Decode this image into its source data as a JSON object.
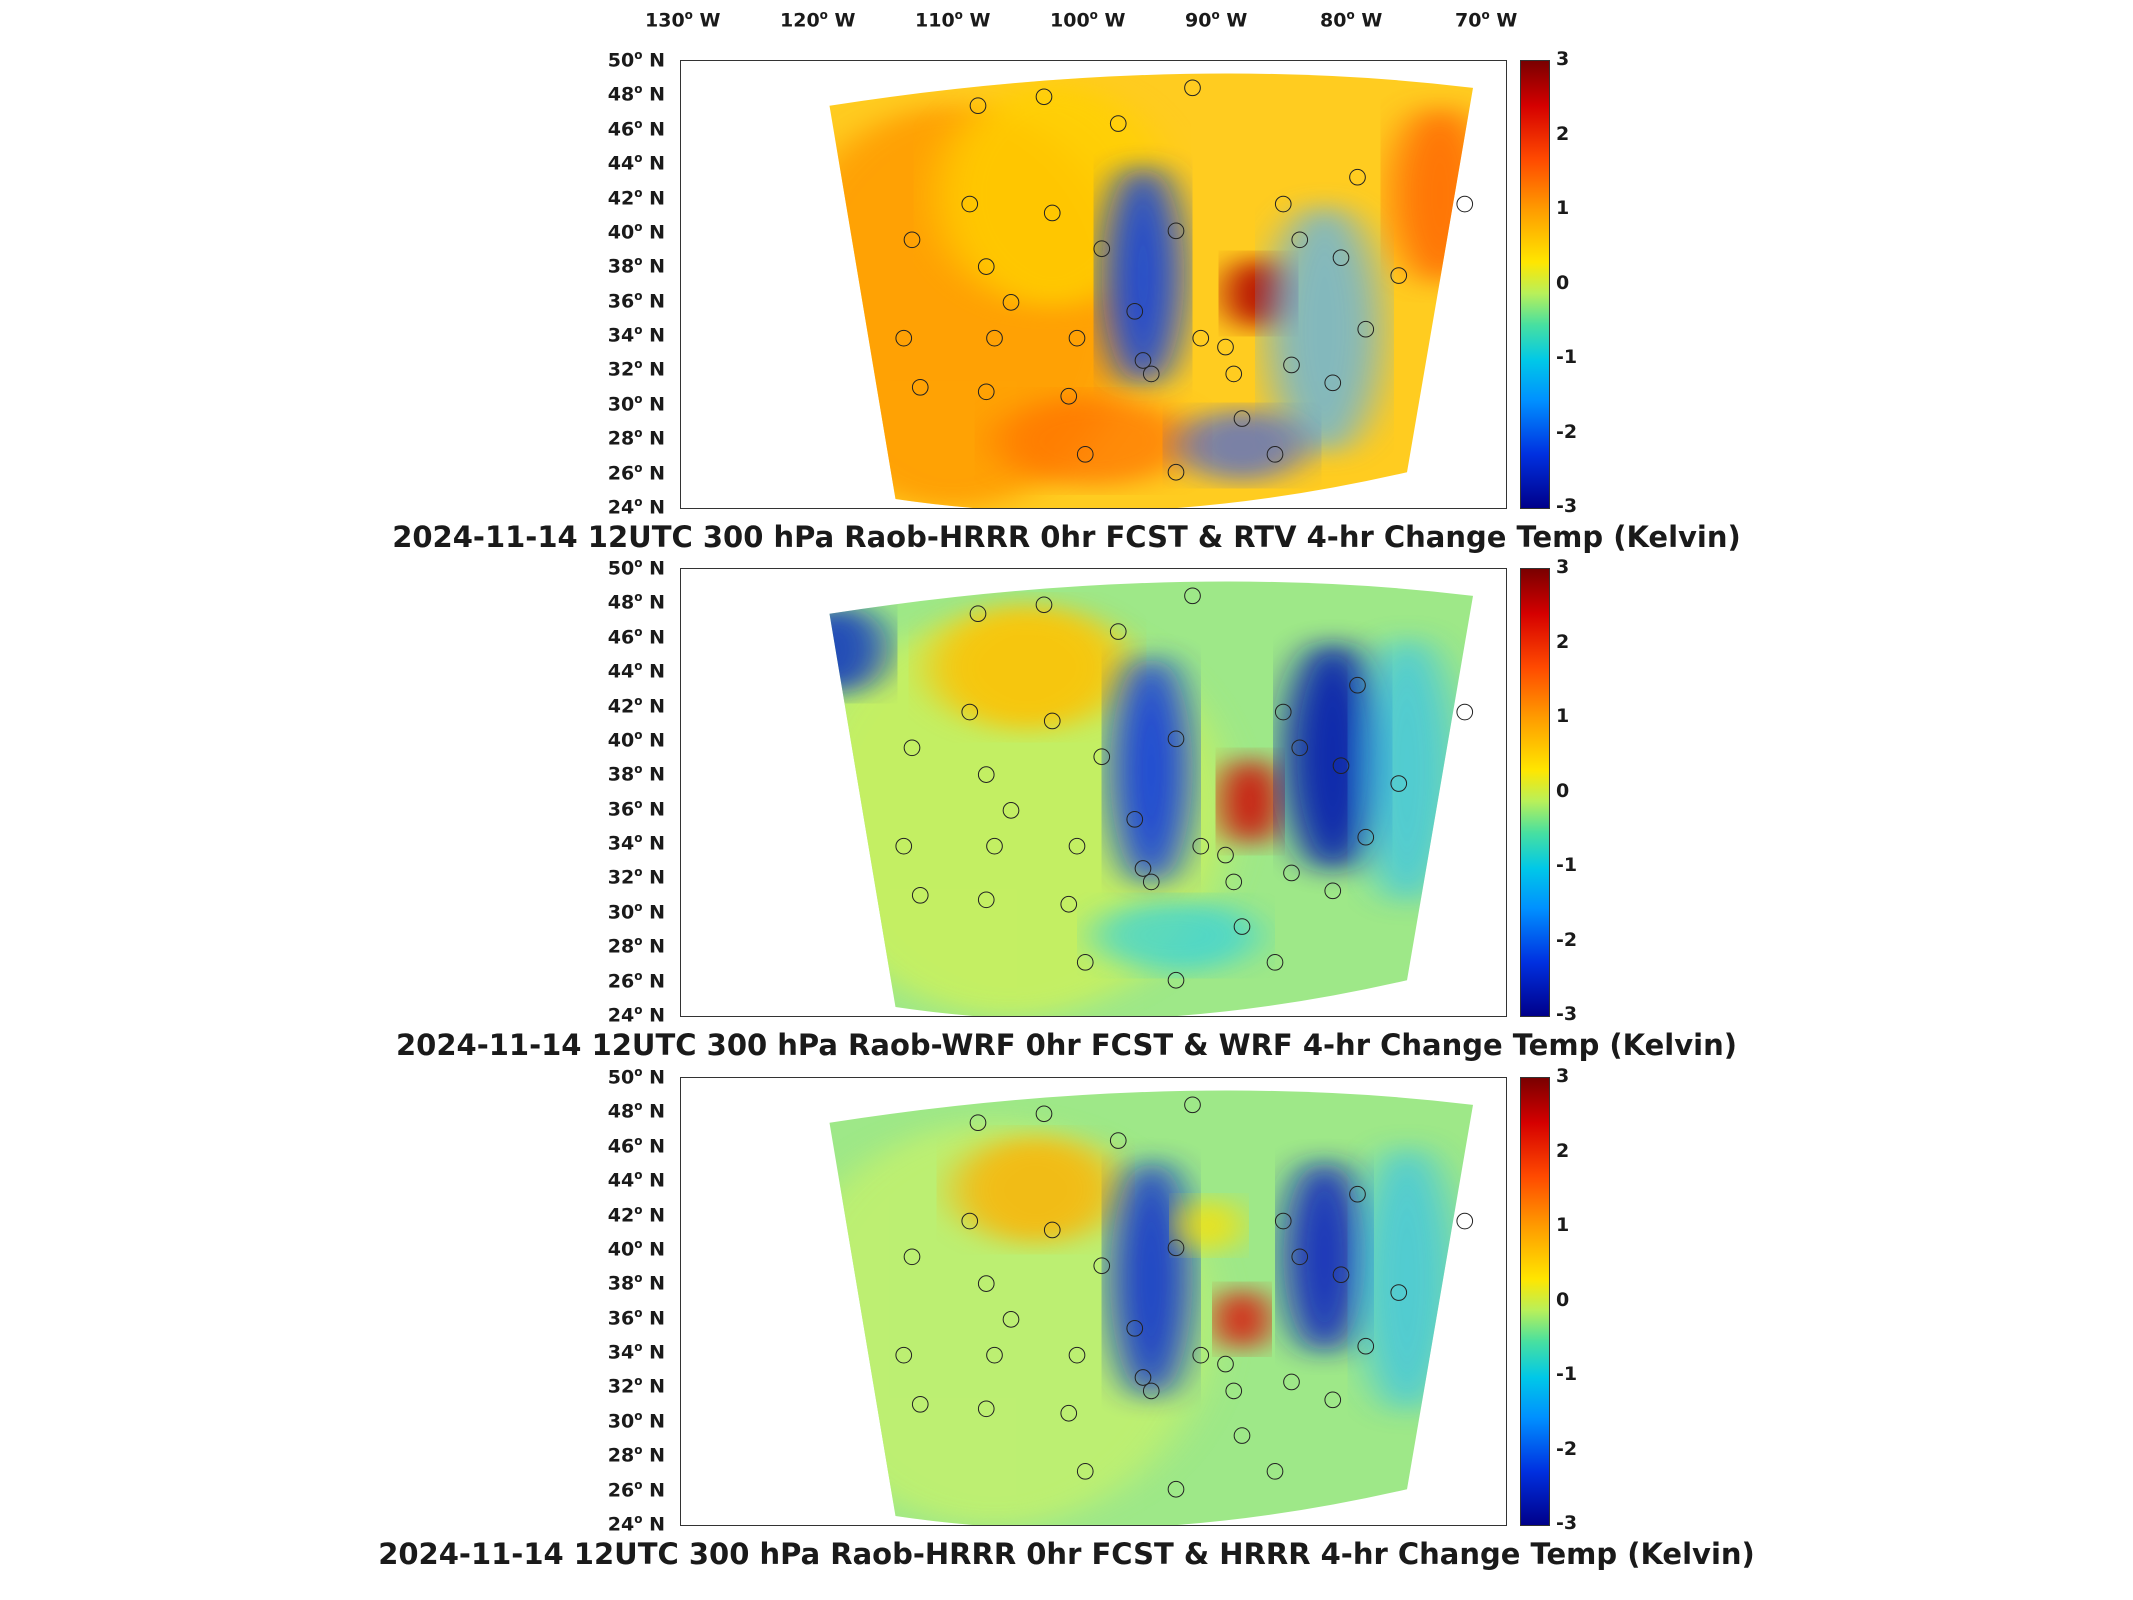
{
  "lon_labels": [
    "130",
    "120",
    "110",
    "100",
    "90",
    "80",
    "70"
  ],
  "lon_suffix": "W",
  "lat_labels": [
    "50",
    "48",
    "46",
    "44",
    "42",
    "40",
    "38",
    "36",
    "34",
    "32",
    "30",
    "28",
    "26",
    "24"
  ],
  "lat_suffix": "N",
  "colorbar": {
    "ticks": [
      "3",
      "2",
      "1",
      "0",
      "-1",
      "-2",
      "-3"
    ],
    "min": -3,
    "max": 3,
    "colormap": "jet"
  },
  "panels": [
    {
      "title": "2024-11-14 12UTC 300 hPa Raob-HRRR 0hr FCST & RTV 4-hr Change Temp (Kelvin)"
    },
    {
      "title": "2024-11-14 12UTC 300 hPa Raob-WRF 0hr FCST & WRF 4-hr Change Temp (Kelvin)"
    },
    {
      "title": "2024-11-14 12UTC 300 hPa Raob-HRRR 0hr FCST & HRRR 4-hr Change Temp (Kelvin)"
    }
  ],
  "colors": {
    "warm": "#ff8a00",
    "neutral": "#b8f05a",
    "cool": "#00b8ff",
    "cold": "#1020d0"
  }
}
